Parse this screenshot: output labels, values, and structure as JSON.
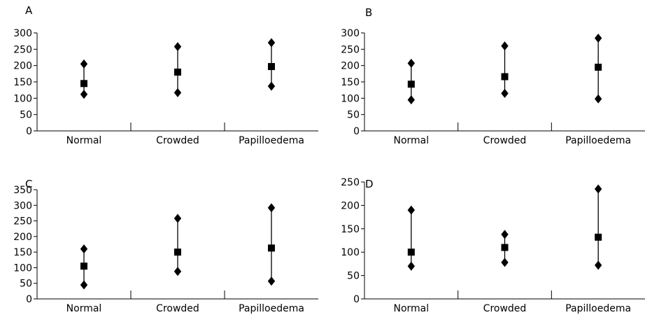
{
  "chart_data": [
    {
      "type": "scatter",
      "panel": "A",
      "categories": [
        "Normal",
        "Crowded",
        "Papilloedema"
      ],
      "ylim": [
        0,
        300
      ],
      "yticks": [
        0,
        50,
        100,
        150,
        200,
        250,
        300
      ],
      "series": [
        {
          "values": [
            145,
            180,
            197
          ],
          "marker": "square"
        },
        {
          "values": [
            205,
            258,
            270
          ],
          "marker": "diamond"
        },
        {
          "values": [
            112,
            117,
            137
          ],
          "marker": "diamond"
        }
      ]
    },
    {
      "type": "scatter",
      "panel": "B",
      "categories": [
        "Normal",
        "Crowded",
        "Papilloedema"
      ],
      "ylim": [
        0,
        300
      ],
      "yticks": [
        0,
        50,
        100,
        150,
        200,
        250,
        300
      ],
      "series": [
        {
          "values": [
            143,
            166,
            195
          ],
          "marker": "square"
        },
        {
          "values": [
            207,
            260,
            284
          ],
          "marker": "diamond"
        },
        {
          "values": [
            95,
            115,
            98
          ],
          "marker": "diamond"
        }
      ]
    },
    {
      "type": "scatter",
      "panel": "C",
      "categories": [
        "Normal",
        "Crowded",
        "Papilloedema"
      ],
      "ylim": [
        0,
        350
      ],
      "yticks": [
        0,
        50,
        100,
        150,
        200,
        250,
        300,
        350
      ],
      "series": [
        {
          "values": [
            105,
            150,
            163
          ],
          "marker": "square"
        },
        {
          "values": [
            160,
            258,
            292
          ],
          "marker": "diamond"
        },
        {
          "values": [
            45,
            88,
            57
          ],
          "marker": "diamond"
        }
      ]
    },
    {
      "type": "scatter",
      "panel": "D",
      "categories": [
        "Normal",
        "Crowded",
        "Papilloedema"
      ],
      "ylim": [
        0,
        250
      ],
      "yticks": [
        0,
        50,
        100,
        150,
        200,
        250
      ],
      "series": [
        {
          "values": [
            100,
            110,
            132
          ],
          "marker": "square"
        },
        {
          "values": [
            190,
            138,
            235
          ],
          "marker": "diamond"
        },
        {
          "values": [
            70,
            78,
            72
          ],
          "marker": "diamond"
        }
      ]
    }
  ]
}
